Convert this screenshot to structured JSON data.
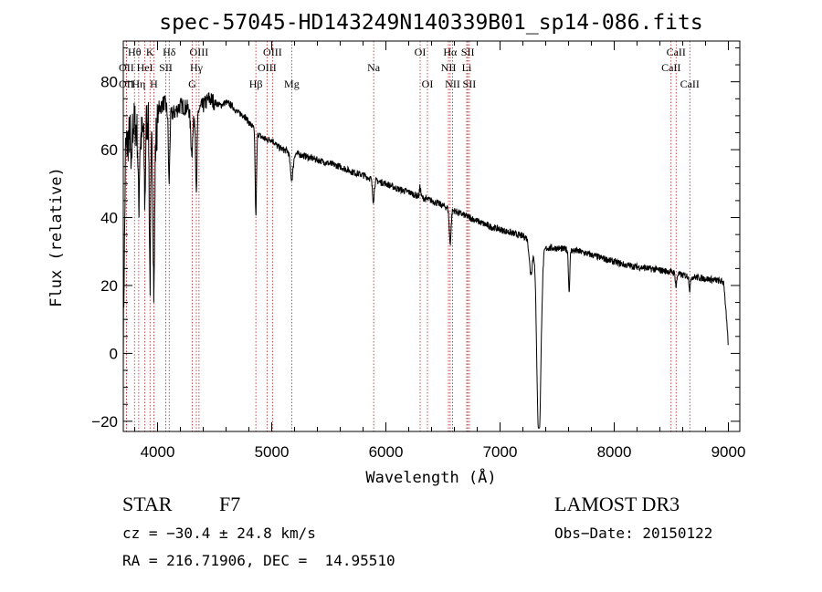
{
  "chart_data": {
    "type": "line",
    "title": "spec-57045-HD143249N140339B01_sp14-086.fits",
    "xlabel": "Wavelength (Å)",
    "ylabel": "Flux (relative)",
    "xlim": [
      3700,
      9100
    ],
    "ylim": [
      -23,
      92
    ],
    "xticks": [
      4000,
      5000,
      6000,
      7000,
      8000,
      9000
    ],
    "yticks": [
      -20,
      0,
      20,
      40,
      60,
      80
    ],
    "spectrum_anchors": [
      [
        3700,
        2
      ],
      [
        3720,
        60
      ],
      [
        3760,
        65
      ],
      [
        3800,
        68
      ],
      [
        3840,
        62
      ],
      [
        3880,
        66
      ],
      [
        3920,
        70
      ],
      [
        3970,
        58
      ],
      [
        4010,
        72
      ],
      [
        4060,
        74
      ],
      [
        4100,
        70
      ],
      [
        4150,
        71
      ],
      [
        4200,
        73
      ],
      [
        4280,
        72
      ],
      [
        4340,
        71
      ],
      [
        4400,
        73
      ],
      [
        4450,
        75
      ],
      [
        4500,
        74
      ],
      [
        4550,
        73
      ],
      [
        4600,
        74
      ],
      [
        4650,
        73
      ],
      [
        4700,
        71
      ],
      [
        4760,
        70
      ],
      [
        4800,
        68
      ],
      [
        4850,
        66
      ],
      [
        4900,
        64
      ],
      [
        4950,
        63
      ],
      [
        5000,
        63
      ],
      [
        5050,
        61
      ],
      [
        5100,
        60
      ],
      [
        5200,
        59
      ],
      [
        5300,
        58
      ],
      [
        5400,
        57
      ],
      [
        5500,
        56
      ],
      [
        5600,
        55
      ],
      [
        5700,
        53.5
      ],
      [
        5800,
        52.5
      ],
      [
        5900,
        51
      ],
      [
        6000,
        50
      ],
      [
        6100,
        48.5
      ],
      [
        6200,
        47.5
      ],
      [
        6300,
        46
      ],
      [
        6400,
        45
      ],
      [
        6500,
        43.5
      ],
      [
        6600,
        42
      ],
      [
        6700,
        40.5
      ],
      [
        6800,
        39
      ],
      [
        6900,
        37.5
      ],
      [
        7000,
        36.5
      ],
      [
        7100,
        35.5
      ],
      [
        7200,
        34.5
      ],
      [
        7250,
        34
      ],
      [
        7300,
        33
      ],
      [
        7350,
        32
      ],
      [
        7400,
        31
      ],
      [
        7500,
        31
      ],
      [
        7600,
        30.5
      ],
      [
        7700,
        30
      ],
      [
        7800,
        29
      ],
      [
        7900,
        28
      ],
      [
        8000,
        27
      ],
      [
        8100,
        26
      ],
      [
        8200,
        25.5
      ],
      [
        8300,
        25
      ],
      [
        8400,
        24.5
      ],
      [
        8500,
        24
      ],
      [
        8600,
        23
      ],
      [
        8700,
        22.5
      ],
      [
        8800,
        22
      ],
      [
        8900,
        21.5
      ],
      [
        8960,
        21
      ],
      [
        9000,
        2
      ]
    ],
    "absorption_features": [
      [
        3770,
        15,
        4
      ],
      [
        3835,
        20,
        5
      ],
      [
        3889,
        22,
        5
      ],
      [
        3934,
        45,
        6
      ],
      [
        3968,
        40,
        6
      ],
      [
        4101,
        20,
        6
      ],
      [
        4300,
        12,
        10
      ],
      [
        4340,
        25,
        6
      ],
      [
        4861,
        25,
        6
      ],
      [
        5175,
        8,
        12
      ],
      [
        5890,
        6,
        8
      ],
      [
        6563,
        10,
        8
      ],
      [
        7605,
        12,
        6
      ],
      [
        7270,
        10,
        14
      ],
      [
        7340,
        58,
        18
      ],
      [
        8542,
        4,
        6
      ],
      [
        8662,
        4,
        6
      ]
    ],
    "emission_features": [
      [
        6300,
        3,
        6
      ]
    ],
    "line_markers": [
      {
        "label": "Hθ",
        "wavelength": 3798,
        "row": 0
      },
      {
        "label": "OII",
        "wavelength": 3727,
        "row": 1
      },
      {
        "label": "OII",
        "wavelength": 3727,
        "row": 2
      },
      {
        "label": "K",
        "wavelength": 3934,
        "row": 0
      },
      {
        "label": "HeI",
        "wavelength": 3889,
        "row": 1
      },
      {
        "label": "Hη",
        "wavelength": 3835,
        "row": 2
      },
      {
        "label": "Hδ",
        "wavelength": 4102,
        "row": 0
      },
      {
        "label": "SII",
        "wavelength": 4072,
        "row": 1
      },
      {
        "label": "H",
        "wavelength": 3968,
        "row": 2
      },
      {
        "label": "OIII",
        "wavelength": 4363,
        "row": 0
      },
      {
        "label": "Hγ",
        "wavelength": 4340,
        "row": 1
      },
      {
        "label": "G",
        "wavelength": 4304,
        "row": 2
      },
      {
        "label": "OIII",
        "wavelength": 5007,
        "row": 0
      },
      {
        "label": "OIII",
        "wavelength": 4959,
        "row": 1
      },
      {
        "label": "Hβ",
        "wavelength": 4861,
        "row": 2
      },
      {
        "label": "Mg",
        "wavelength": 5175,
        "row": 2
      },
      {
        "label": "Na",
        "wavelength": 5893,
        "row": 1
      },
      {
        "label": "OI",
        "wavelength": 6300,
        "row": 0
      },
      {
        "label": "OI",
        "wavelength": 6364,
        "row": 2
      },
      {
        "label": "Hα",
        "wavelength": 6563,
        "row": 0
      },
      {
        "label": "SII",
        "wavelength": 6717,
        "row": 0
      },
      {
        "label": "NII",
        "wavelength": 6548,
        "row": 1
      },
      {
        "label": "Li",
        "wavelength": 6708,
        "row": 1
      },
      {
        "label": "NII",
        "wavelength": 6584,
        "row": 2
      },
      {
        "label": "SII",
        "wavelength": 6731,
        "row": 2
      },
      {
        "label": "CaII",
        "wavelength": 8542,
        "row": 0
      },
      {
        "label": "CaII",
        "wavelength": 8498,
        "row": 1
      },
      {
        "label": "CaII",
        "wavelength": 8662,
        "row": 2
      }
    ],
    "colors": {
      "spectrum": "#000000",
      "markers": "#b22222",
      "axes": "#000000"
    }
  },
  "info": {
    "class": "STAR",
    "subclass": "F7",
    "survey": "LAMOST DR3",
    "cz": "cz = −30.4 ± 24.8 km/s",
    "obs_date": "Obs−Date: 20150122",
    "coords": "RA = 216.71906, DEC =  14.95510"
  }
}
